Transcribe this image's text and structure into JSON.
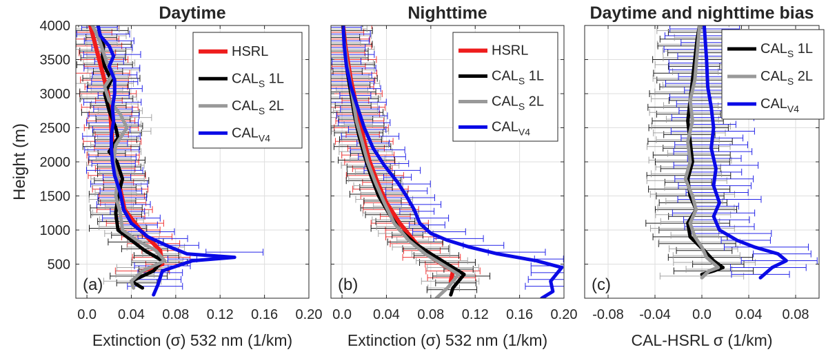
{
  "chart_data": [
    {
      "type": "line",
      "title": "Daytime",
      "panel_label": "(a)",
      "xlabel": "Extinction (σ) 532 nm (1/km)",
      "ylabel": "Height (m)",
      "xlim": [
        -0.01,
        0.2
      ],
      "ylim": [
        0,
        4000
      ],
      "xticks": [
        0.0,
        0.04,
        0.08,
        0.12,
        0.16,
        0.2
      ],
      "xtick_labels": [
        "0.0",
        "0.04",
        "0.08",
        "0.12",
        "0.16",
        "0.20"
      ],
      "yticks": [
        500,
        1000,
        1500,
        2000,
        2500,
        3000,
        3500,
        4000
      ],
      "ytick_labels": [
        "500",
        "1000",
        "1500",
        "2000",
        "2500",
        "3000",
        "3500",
        "4000"
      ],
      "grid": true,
      "legend_position": "top-right",
      "series": [
        {
          "name": "HSRL",
          "color": "#ee1c1c",
          "width": 6,
          "x": [
            0.05,
            0.068,
            0.066,
            0.048,
            0.034,
            0.03,
            0.027,
            0.024,
            0.023,
            0.022,
            0.021,
            0.019,
            0.015,
            0.011,
            0.007,
            0.003
          ],
          "y": [
            400,
            500,
            700,
            1000,
            1300,
            1600,
            1800,
            2000,
            2250,
            2500,
            2750,
            3000,
            3250,
            3500,
            3750,
            4000
          ]
        },
        {
          "name": "CAL",
          "sub": "S",
          "suffix": " 1L",
          "color": "#000000",
          "width": 5,
          "x": [
            0.05,
            0.04,
            0.06,
            0.068,
            0.052,
            0.04,
            0.028,
            0.026,
            0.028,
            0.032,
            0.027,
            0.02,
            0.028,
            0.026,
            0.02,
            0.016,
            0.022,
            0.016,
            0.014,
            0.015,
            0.012,
            0.01
          ],
          "y": [
            150,
            250,
            400,
            550,
            700,
            850,
            1000,
            1250,
            1500,
            1750,
            2000,
            2150,
            2350,
            2500,
            2750,
            3000,
            3200,
            3400,
            3550,
            3700,
            3850,
            4000
          ]
        },
        {
          "name": "CAL",
          "sub": "S",
          "suffix": " 2L",
          "color": "#999999",
          "width": 5,
          "x": [
            0.042,
            0.04,
            0.05,
            0.07,
            0.062,
            0.045,
            0.032,
            0.03,
            0.026,
            0.028,
            0.024,
            0.026,
            0.036,
            0.03,
            0.02,
            0.016,
            0.024,
            0.018,
            0.015,
            0.012,
            0.008,
            0.005
          ],
          "y": [
            150,
            250,
            400,
            550,
            700,
            850,
            1000,
            1250,
            1500,
            1750,
            2000,
            2250,
            2500,
            2700,
            2900,
            3100,
            3300,
            3450,
            3600,
            3750,
            3900,
            4000
          ]
        },
        {
          "name": "CAL",
          "sub": "V4",
          "suffix": "",
          "color": "#0a0ae6",
          "width": 5,
          "x": [
            0.06,
            0.064,
            0.068,
            0.086,
            0.095,
            0.133,
            0.09,
            0.075,
            0.055,
            0.04,
            0.033,
            0.03,
            0.025,
            0.023,
            0.022,
            0.022,
            0.024,
            0.023,
            0.025,
            0.025,
            0.02,
            0.024,
            0.02,
            0.012,
            0.01
          ],
          "y": [
            50,
            200,
            400,
            500,
            550,
            600,
            650,
            750,
            900,
            1100,
            1300,
            1550,
            1800,
            2000,
            2200,
            2400,
            2600,
            2800,
            3000,
            3200,
            3400,
            3550,
            3700,
            3850,
            4000
          ]
        }
      ]
    },
    {
      "type": "line",
      "title": "Nighttime",
      "panel_label": "(b)",
      "xlabel": "Extinction (σ) 532 nm (1/km)",
      "ylabel": "",
      "xlim": [
        -0.01,
        0.2
      ],
      "ylim": [
        0,
        4000
      ],
      "xticks": [
        0.0,
        0.04,
        0.08,
        0.12,
        0.16,
        0.2
      ],
      "xtick_labels": [
        "0.0",
        "0.04",
        "0.08",
        "0.12",
        "0.16",
        "0.20"
      ],
      "yticks": [
        500,
        1000,
        1500,
        2000,
        2500,
        3000,
        3500,
        4000
      ],
      "ytick_labels": [],
      "grid": true,
      "legend_position": "top-right",
      "series": [
        {
          "name": "HSRL",
          "color": "#ee1c1c",
          "width": 6,
          "x": [
            0.098,
            0.1,
            0.085,
            0.072,
            0.062,
            0.052,
            0.04,
            0.032,
            0.025,
            0.02,
            0.016,
            0.012,
            0.008,
            0.005,
            0.003,
            0.002,
            0.001
          ],
          "y": [
            250,
            400,
            550,
            700,
            900,
            1100,
            1400,
            1700,
            2000,
            2300,
            2600,
            2900,
            3200,
            3500,
            3700,
            3850,
            4000
          ]
        },
        {
          "name": "CAL",
          "sub": "S",
          "suffix": " 1L",
          "color": "#000000",
          "width": 5,
          "x": [
            0.098,
            0.1,
            0.11,
            0.095,
            0.08,
            0.066,
            0.052,
            0.042,
            0.033,
            0.026,
            0.02,
            0.015,
            0.011,
            0.008,
            0.005,
            0.003,
            0.002,
            0.001
          ],
          "y": [
            50,
            150,
            350,
            500,
            650,
            800,
            1000,
            1250,
            1500,
            1800,
            2100,
            2400,
            2700,
            3000,
            3300,
            3550,
            3800,
            4000
          ]
        },
        {
          "name": "CAL",
          "sub": "S",
          "suffix": " 2L",
          "color": "#999999",
          "width": 5,
          "x": [
            0.085,
            0.095,
            0.105,
            0.09,
            0.075,
            0.06,
            0.047,
            0.038,
            0.03,
            0.023,
            0.018,
            0.013,
            0.01,
            0.007,
            0.004,
            0.002,
            0.001
          ],
          "y": [
            0,
            150,
            350,
            500,
            650,
            850,
            1100,
            1400,
            1700,
            2000,
            2300,
            2600,
            2900,
            3200,
            3500,
            3750,
            4000
          ]
        },
        {
          "name": "CAL",
          "sub": "V4",
          "suffix": "",
          "color": "#0a0ae6",
          "width": 5,
          "x": [
            0.18,
            0.19,
            0.188,
            0.198,
            0.175,
            0.14,
            0.115,
            0.095,
            0.08,
            0.07,
            0.065,
            0.058,
            0.05,
            0.038,
            0.028,
            0.02,
            0.014,
            0.008,
            0.004,
            0.002,
            0.001
          ],
          "y": [
            0,
            100,
            250,
            450,
            550,
            650,
            750,
            850,
            950,
            1100,
            1300,
            1500,
            1700,
            1950,
            2200,
            2500,
            2800,
            3100,
            3400,
            3700,
            4000
          ]
        }
      ]
    },
    {
      "type": "line",
      "title": "Daytime and nighttime bias",
      "panel_label": "(c)",
      "xlabel": "CAL-HSRL σ (1/km)",
      "ylabel": "",
      "xlim": [
        -0.1,
        0.1
      ],
      "ylim": [
        0,
        4000
      ],
      "xticks": [
        -0.08,
        -0.04,
        0.0,
        0.04,
        0.08
      ],
      "xtick_labels": [
        "-0.08",
        "-0.04",
        "0.0",
        "0.04",
        "0.08"
      ],
      "yticks": [
        500,
        1000,
        1500,
        2000,
        2500,
        3000,
        3500,
        4000
      ],
      "ytick_labels": [],
      "grid": true,
      "legend_position": "top-right",
      "series": [
        {
          "name": "CAL",
          "sub": "S",
          "suffix": " 1L",
          "color": "#000000",
          "width": 5,
          "x": [
            0.0,
            0.01,
            0.018,
            0.01,
            0.002,
            -0.01,
            -0.012,
            -0.005,
            -0.01,
            -0.012,
            -0.008,
            -0.01,
            -0.012,
            -0.01,
            -0.008,
            -0.006,
            -0.004,
            -0.002
          ],
          "y": [
            350,
            400,
            450,
            550,
            700,
            900,
            1100,
            1300,
            1500,
            1750,
            2000,
            2300,
            2600,
            2900,
            3200,
            3500,
            3800,
            4000
          ]
        },
        {
          "name": "CAL",
          "sub": "S",
          "suffix": " 2L",
          "color": "#999999",
          "width": 5,
          "x": [
            0.0,
            0.006,
            0.014,
            0.004,
            0.0,
            -0.006,
            -0.01,
            -0.005,
            -0.008,
            -0.014,
            -0.01,
            -0.012,
            -0.008,
            -0.01,
            -0.006,
            -0.004,
            -0.002
          ],
          "y": [
            300,
            400,
            450,
            600,
            750,
            900,
            1100,
            1300,
            1500,
            1750,
            2000,
            2300,
            2600,
            2900,
            3200,
            3600,
            4000
          ]
        },
        {
          "name": "CAL",
          "sub": "V4",
          "suffix": "",
          "color": "#0a0ae6",
          "width": 5,
          "x": [
            0.05,
            0.06,
            0.072,
            0.065,
            0.045,
            0.03,
            0.015,
            0.01,
            0.015,
            0.01,
            0.012,
            0.008,
            0.01,
            0.008,
            0.005,
            0.004,
            0.002
          ],
          "y": [
            300,
            450,
            550,
            650,
            750,
            850,
            1000,
            1200,
            1400,
            1650,
            1900,
            2200,
            2500,
            2800,
            3100,
            3500,
            4000
          ]
        }
      ]
    }
  ]
}
